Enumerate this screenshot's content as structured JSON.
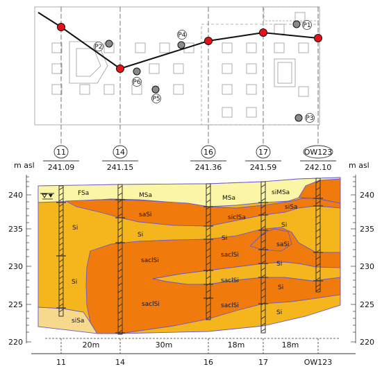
{
  "axis_unit_left": "m asl",
  "axis_unit_right": "m asl",
  "elevation_ticks": [
    "240",
    "235",
    "230",
    "225",
    "220"
  ],
  "boreholes": [
    {
      "id": "11",
      "elevation": "241.09"
    },
    {
      "id": "14",
      "elevation": "241.15"
    },
    {
      "id": "16",
      "elevation": "241.36"
    },
    {
      "id": "17",
      "elevation": "241.59"
    },
    {
      "id": "OW123",
      "elevation": "242.10"
    }
  ],
  "distances": [
    "20m",
    "30m",
    "18m",
    "18m"
  ],
  "piezometers": [
    "P1",
    "P2",
    "P3",
    "P4",
    "P5",
    "P6"
  ],
  "soil_labels": [
    "FSa",
    "MSa",
    "MSa",
    "siMSa",
    "siSa",
    "saSi",
    "siclSa",
    "Si",
    "Si",
    "Si",
    "Si",
    "saSi",
    "saclSi",
    "saclSi",
    "Si",
    "Si",
    "saclSi",
    "Si",
    "saclSi",
    "saclSi",
    "Si",
    "siSa"
  ],
  "colors": {
    "sand_light": "#fbf5a6",
    "sand_silty": "#f7d98c",
    "silt": "#f5b51c",
    "clay_silt": "#f07a0c",
    "marker_red": "#e8101a",
    "marker_grey": "#8a8a8a",
    "boundary": "#6a5acd"
  }
}
